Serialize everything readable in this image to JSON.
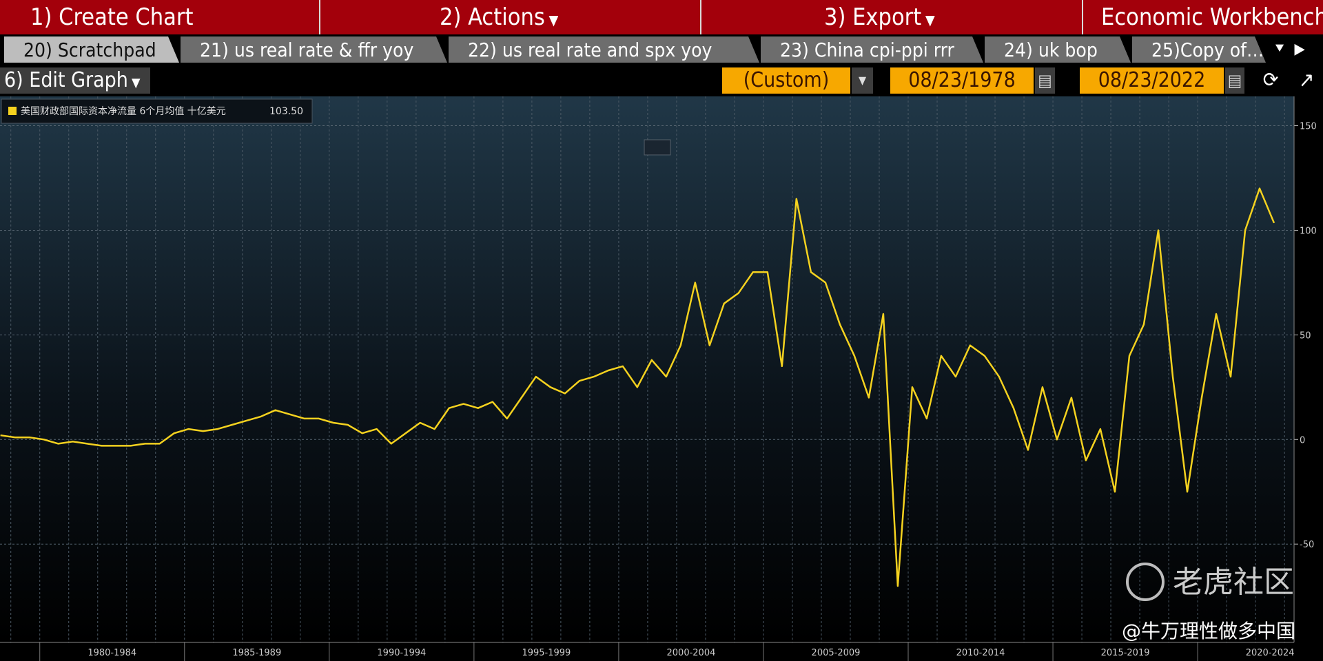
{
  "menu": {
    "items": [
      "1) Create Chart",
      "2) Actions",
      "3) Export",
      "Economic Workbench"
    ]
  },
  "tabs": [
    "20) Scratchpad",
    "21) us real rate & ffr yoy",
    "22) us real rate and spx yoy",
    "23) China cpi-ppi rrr",
    "24) uk bop",
    "25)Copy of…"
  ],
  "toolbar": {
    "edit": "6) Edit Graph",
    "period": "(Custom)",
    "start": "08/23/1978",
    "end": "08/23/2022"
  },
  "chart_data": {
    "type": "line",
    "legend_value": "103.50",
    "series": [
      {
        "name": "美国财政部国际资本净流量 6个月均值 十亿美元",
        "color": "#f5d21f",
        "values": [
          2,
          1,
          1,
          0,
          -2,
          -1,
          -2,
          -3,
          -3,
          -3,
          -2,
          -2,
          3,
          5,
          4,
          5,
          7,
          9,
          11,
          14,
          12,
          10,
          10,
          8,
          7,
          3,
          5,
          -2,
          3,
          8,
          5,
          15,
          17,
          15,
          18,
          10,
          20,
          30,
          25,
          22,
          28,
          30,
          33,
          35,
          25,
          38,
          30,
          45,
          75,
          45,
          65,
          70,
          80,
          80,
          35,
          115,
          80,
          75,
          55,
          40,
          20,
          60,
          -70,
          25,
          10,
          40,
          30,
          45,
          40,
          30,
          15,
          -5,
          25,
          0,
          20,
          -10,
          5,
          -25,
          40,
          55,
          100,
          30,
          -25,
          20,
          60,
          30,
          100,
          120,
          103.5
        ]
      }
    ],
    "xlim": [
      1978.64,
      2022.64
    ],
    "xticks": [
      {
        "value": 1980,
        "label": "1980-1984"
      },
      {
        "value": 1985,
        "label": "1985-1989"
      },
      {
        "value": 1990,
        "label": "1990-1994"
      },
      {
        "value": 1995,
        "label": "1995-1999"
      },
      {
        "value": 2000,
        "label": "2000-2004"
      },
      {
        "value": 2005,
        "label": "2005-2009"
      },
      {
        "value": 2010,
        "label": "2010-2014"
      },
      {
        "value": 2015,
        "label": "2015-2019"
      },
      {
        "value": 2020,
        "label": "2020-2024"
      }
    ],
    "ylim": [
      -97,
      164
    ],
    "yticks": [
      -50,
      0,
      50,
      100,
      150
    ],
    "grid": true
  },
  "watermark": [
    "老虎社区",
    "@牛万理性做多中国"
  ]
}
